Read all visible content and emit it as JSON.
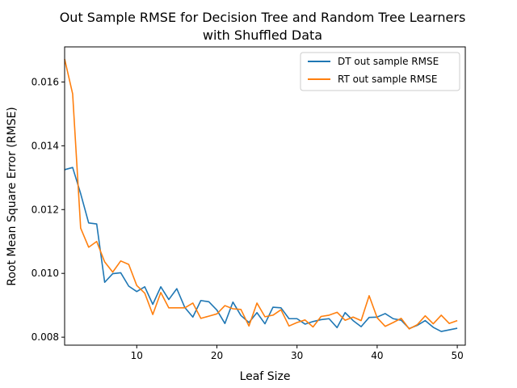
{
  "chart_data": {
    "type": "line",
    "title_lines": [
      "Out Sample RMSE for Decision Tree and Random Tree Learners",
      "with Shuffled Data"
    ],
    "xlabel": "Leaf Size",
    "ylabel": "Root Mean Square Error (RMSE)",
    "xlim": [
      1,
      51
    ],
    "ylim": [
      0.00775,
      0.0171
    ],
    "xticks": [
      10,
      20,
      30,
      40,
      50
    ],
    "yticks": [
      0.008,
      0.01,
      0.012,
      0.014,
      0.016
    ],
    "ytick_labels": [
      "0.008",
      "0.010",
      "0.012",
      "0.014",
      "0.016"
    ],
    "grid": false,
    "legend_position": "top-right",
    "x": [
      1,
      2,
      3,
      4,
      5,
      6,
      7,
      8,
      9,
      10,
      11,
      12,
      13,
      14,
      15,
      16,
      17,
      18,
      19,
      20,
      21,
      22,
      23,
      24,
      25,
      26,
      27,
      28,
      29,
      30,
      31,
      32,
      33,
      34,
      35,
      36,
      37,
      38,
      39,
      40,
      41,
      42,
      43,
      44,
      45,
      46,
      47,
      48,
      49,
      50
    ],
    "series": [
      {
        "name": "DT out sample RMSE",
        "color": "#1f77b4",
        "values": [
          0.01325,
          0.01332,
          0.0125,
          0.01158,
          0.01155,
          0.00972,
          0.00999,
          0.01002,
          0.0096,
          0.00943,
          0.00958,
          0.00903,
          0.00958,
          0.00918,
          0.00952,
          0.00893,
          0.00863,
          0.00915,
          0.00911,
          0.00885,
          0.00843,
          0.0091,
          0.00868,
          0.00846,
          0.00877,
          0.00842,
          0.00894,
          0.00892,
          0.00858,
          0.00858,
          0.00841,
          0.00849,
          0.00855,
          0.00858,
          0.0083,
          0.00877,
          0.00852,
          0.00833,
          0.00862,
          0.00863,
          0.00874,
          0.00858,
          0.00853,
          0.00827,
          0.00837,
          0.00852,
          0.00831,
          0.00818,
          0.00823,
          0.00828
        ]
      },
      {
        "name": "RT out sample RMSE",
        "color": "#ff7f0e",
        "values": [
          0.01672,
          0.01563,
          0.01142,
          0.01082,
          0.011,
          0.01036,
          0.01004,
          0.01039,
          0.01028,
          0.00962,
          0.00938,
          0.00871,
          0.0094,
          0.00892,
          0.00892,
          0.00892,
          0.00907,
          0.00859,
          0.00866,
          0.00873,
          0.00899,
          0.00889,
          0.00887,
          0.00835,
          0.00907,
          0.00864,
          0.00869,
          0.00886,
          0.00835,
          0.00846,
          0.00854,
          0.00832,
          0.00865,
          0.00869,
          0.00878,
          0.00853,
          0.00863,
          0.00852,
          0.0093,
          0.00861,
          0.00834,
          0.00846,
          0.00859,
          0.00826,
          0.00839,
          0.00867,
          0.00842,
          0.00869,
          0.00843,
          0.00852
        ]
      }
    ]
  }
}
